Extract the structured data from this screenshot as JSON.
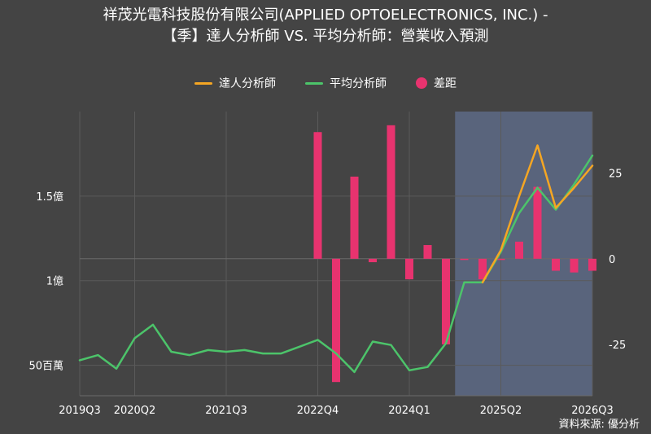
{
  "title_line1": "祥茂光電科技股份有限公司(APPLIED OPTOELECTRONICS, INC.) -",
  "title_line2": "【季】達人分析師 VS. 平均分析師：營業收入預測",
  "source": "資料來源: 優分析",
  "colors": {
    "background": "#444444",
    "expert": "#F5A623",
    "average": "#4CC46A",
    "gap": "#E8336F",
    "forecast_band": "#5D6A86",
    "grid": "#5A5A5A"
  },
  "chart_data": {
    "type": "line",
    "title": "祥茂光電科技股份有限公司(APPLIED OPTOELECTRONICS, INC.) - 【季】達人分析師 VS. 平均分析師：營業收入預測",
    "xlabel": "",
    "ylabel": "",
    "x_tick_labels": [
      "2019Q3",
      "2020Q2",
      "2021Q3",
      "2022Q4",
      "2024Q1",
      "2025Q2",
      "2026Q3"
    ],
    "y_left_ticks": [
      "50百萬",
      "1億",
      "1.5億"
    ],
    "y_left_tick_values": [
      50,
      100,
      150
    ],
    "y_left_unit": "百萬",
    "ylim_left": [
      32,
      200
    ],
    "y_right_ticks": [
      "-25",
      "0",
      "25"
    ],
    "y_right_tick_values": [
      -25,
      0,
      25
    ],
    "ylim_right": [
      -40,
      43
    ],
    "forecast_shaded_from": "2024Q4",
    "grid": true,
    "legend_position": "top",
    "categories": [
      "2019Q3",
      "2019Q4",
      "2020Q1",
      "2020Q2",
      "2020Q3",
      "2020Q4",
      "2021Q1",
      "2021Q2",
      "2021Q3",
      "2021Q4",
      "2022Q1",
      "2022Q2",
      "2022Q3",
      "2022Q4",
      "2023Q1",
      "2023Q2",
      "2023Q3",
      "2023Q4",
      "2024Q1",
      "2024Q2",
      "2024Q3",
      "2024Q4",
      "2025Q1",
      "2025Q2",
      "2025Q3",
      "2025Q4",
      "2026Q1",
      "2026Q2",
      "2026Q3"
    ],
    "series": [
      {
        "name": "達人分析師",
        "axis": "left",
        "color": "#F5A623",
        "values": [
          null,
          null,
          null,
          null,
          null,
          null,
          null,
          null,
          null,
          null,
          null,
          null,
          null,
          null,
          null,
          null,
          null,
          null,
          null,
          null,
          null,
          null,
          99,
          118,
          150,
          180,
          143,
          155,
          168
        ]
      },
      {
        "name": "平均分析師",
        "axis": "left",
        "color": "#4CC46A",
        "values": [
          53,
          56,
          48,
          66,
          74,
          58,
          56,
          59,
          58,
          59,
          57,
          57,
          61,
          65,
          57,
          46,
          64,
          62,
          47,
          49,
          63,
          99,
          99,
          117,
          140,
          155,
          142,
          157,
          174
        ]
      },
      {
        "name": "差距",
        "axis": "right",
        "type": "bar",
        "color": "#E8336F",
        "values": [
          null,
          null,
          null,
          null,
          null,
          null,
          null,
          null,
          null,
          null,
          null,
          null,
          null,
          37,
          -36,
          24,
          -1,
          39,
          -6,
          4,
          -25,
          0,
          -6,
          0,
          5,
          21,
          -3.5,
          -4,
          -3.5
        ]
      }
    ]
  }
}
